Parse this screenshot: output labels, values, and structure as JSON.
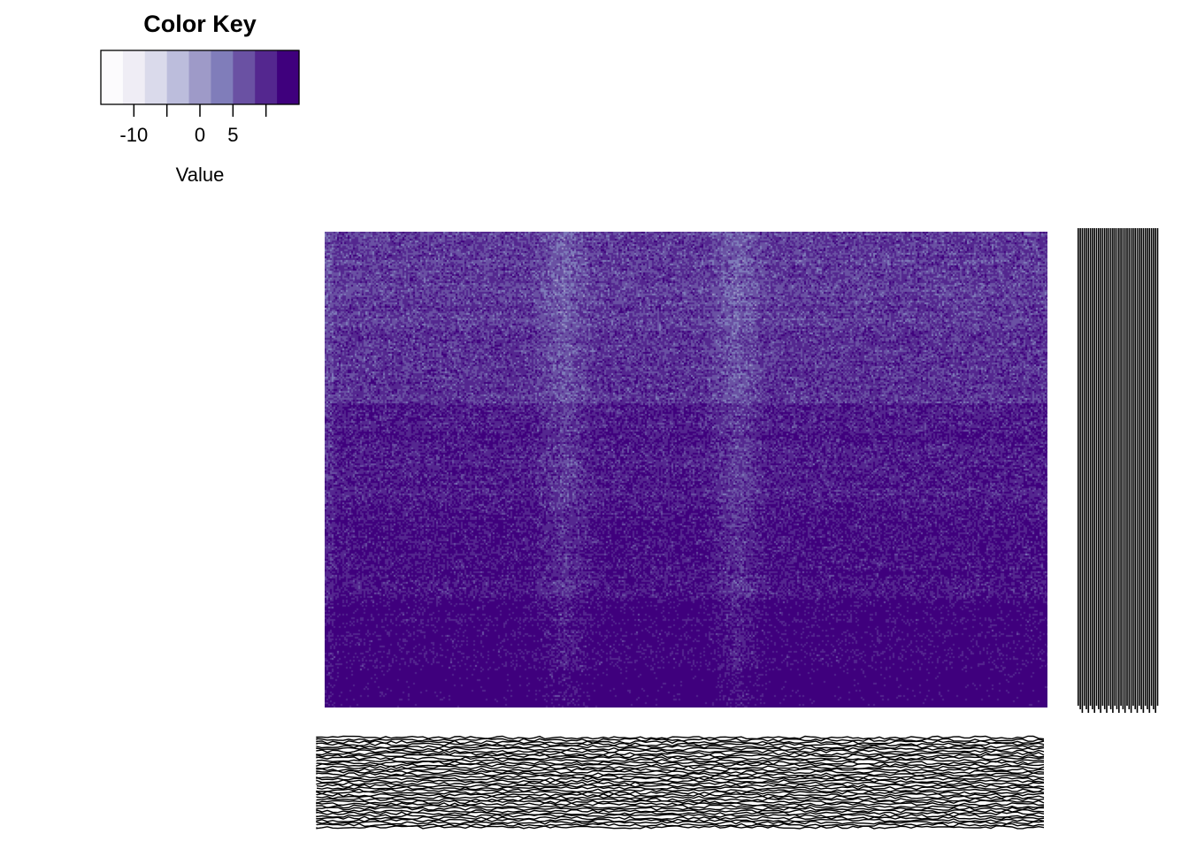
{
  "chart_data": {
    "type": "heatmap",
    "title": "",
    "xlabel": "",
    "ylabel": "",
    "color_key": {
      "title": "Color Key",
      "xlabel": "Value",
      "breaks": [
        -15,
        -12.5,
        -10,
        -7.5,
        -5,
        -2.5,
        0,
        2.5,
        5,
        7.5,
        10,
        12.5,
        15
      ],
      "colors": [
        "#fcfbfd",
        "#efedf5",
        "#dadaeb",
        "#bcbddc",
        "#9e9ac8",
        "#807dba",
        "#6a51a3",
        "#54278f",
        "#3f007d"
      ],
      "ticks": [
        -10,
        0,
        5
      ],
      "tick_labels": [
        "-10",
        "0",
        "5"
      ]
    },
    "band_mean_values": [
      2.5,
      3.2,
      4.5,
      5.3,
      6.6,
      7.8
    ],
    "band_row_fractions": [
      0.2,
      0.16,
      0.22,
      0.19,
      0.15,
      0.08
    ],
    "light_column_fractions": [
      0.33,
      0.57
    ],
    "row_label_count": 40,
    "column_label_count": 40,
    "row_labels_note": "illegible",
    "column_labels_note": "illegible"
  }
}
